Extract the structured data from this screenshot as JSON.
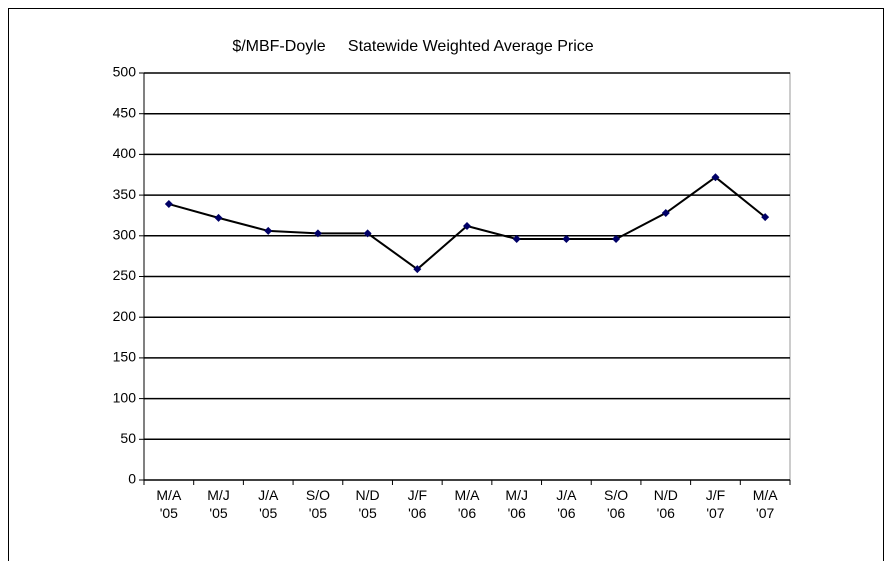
{
  "chart_data": {
    "type": "line",
    "title": "$/MBF-Doyle     Statewide Weighted Average Price",
    "categories": [
      "M/A\n'05",
      "M/J\n'05",
      "J/A\n'05",
      "S/O\n'05",
      "N/D\n'05",
      "J/F\n'06",
      "M/A\n'06",
      "M/J\n'06",
      "J/A\n'06",
      "S/O\n'06",
      "N/D\n'06",
      "J/F\n'07",
      "M/A\n'07"
    ],
    "values": [
      339,
      322,
      306,
      303,
      303,
      259,
      312,
      296,
      296,
      296,
      328,
      372,
      323
    ],
    "color": "#000000",
    "marker_color": "#000066",
    "ylim": [
      0,
      500
    ],
    "yticks": [
      0,
      50,
      100,
      150,
      200,
      250,
      300,
      350,
      400,
      450,
      500
    ],
    "grid": true
  }
}
